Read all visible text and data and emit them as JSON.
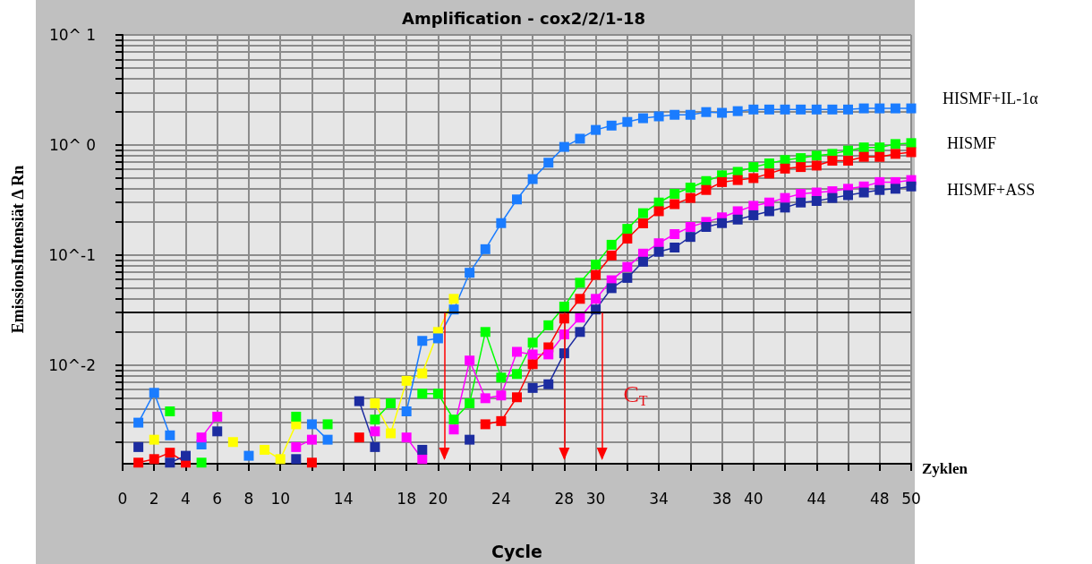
{
  "chart_data": {
    "type": "line",
    "title": "Amplification - cox2/2/1-18",
    "xlabel": "Cycle",
    "ylabel": "EmissionsIntensiät Δ Rn",
    "x": [
      1,
      2,
      3,
      4,
      5,
      6,
      7,
      8,
      9,
      10,
      11,
      12,
      13,
      14,
      15,
      16,
      17,
      18,
      19,
      20,
      21,
      22,
      23,
      24,
      25,
      26,
      27,
      28,
      29,
      30,
      31,
      32,
      33,
      34,
      35,
      36,
      37,
      38,
      39,
      40,
      41,
      42,
      43,
      44,
      45,
      46,
      47,
      48,
      49,
      50
    ],
    "series": [
      {
        "color": "#ffff00",
        "values": [
          null,
          0.0021,
          null,
          null,
          null,
          null,
          0.002,
          null,
          0.0017,
          0.0014,
          0.0029,
          null,
          null,
          null,
          null,
          0.0045,
          0.0024,
          0.0072,
          0.0084,
          0.02,
          0.04,
          null,
          null,
          null,
          null,
          null,
          null,
          null,
          null,
          null,
          null,
          null,
          null,
          null,
          null,
          null,
          null,
          null,
          null,
          null,
          null,
          null,
          null,
          null,
          null,
          null,
          null,
          null,
          null,
          null
        ]
      },
      {
        "color": "#1a7cff",
        "values": [
          0.003,
          0.0056,
          0.0023,
          null,
          0.0019,
          null,
          null,
          0.0015,
          null,
          null,
          null,
          0.0029,
          0.0021,
          null,
          null,
          null,
          null,
          0.0038,
          0.0166,
          0.0175,
          0.032,
          0.069,
          0.113,
          0.195,
          0.32,
          0.49,
          0.69,
          0.96,
          1.14,
          1.37,
          1.5,
          1.62,
          1.75,
          1.82,
          1.88,
          1.88,
          1.99,
          1.96,
          2.03,
          2.1,
          2.1,
          2.1,
          2.1,
          2.1,
          2.1,
          2.1,
          2.15,
          2.15,
          2.15,
          2.15
        ]
      },
      {
        "color": "#00ff00",
        "values": [
          null,
          null,
          0.0038,
          null,
          0.0013,
          null,
          null,
          null,
          null,
          null,
          0.0034,
          null,
          0.0029,
          null,
          null,
          0.0032,
          0.0045,
          null,
          0.0055,
          0.0055,
          0.0032,
          0.0045,
          0.02,
          0.0077,
          0.0083,
          0.016,
          0.023,
          0.034,
          0.056,
          0.082,
          0.124,
          0.173,
          0.24,
          0.3,
          0.36,
          0.41,
          0.47,
          0.53,
          0.57,
          0.63,
          0.68,
          0.73,
          0.76,
          0.8,
          0.83,
          0.89,
          0.95,
          0.95,
          1.02,
          1.04
        ]
      },
      {
        "color": "#ff0000",
        "values": [
          0.0013,
          0.0014,
          0.0016,
          0.0013,
          null,
          null,
          null,
          null,
          null,
          null,
          null,
          0.0013,
          null,
          null,
          0.0022,
          null,
          null,
          null,
          null,
          null,
          null,
          null,
          0.0029,
          0.0031,
          0.0051,
          0.0102,
          0.0145,
          0.0265,
          0.04,
          0.066,
          0.099,
          0.141,
          0.194,
          0.25,
          0.29,
          0.33,
          0.39,
          0.46,
          0.48,
          0.5,
          0.55,
          0.61,
          0.63,
          0.65,
          0.72,
          0.72,
          0.78,
          0.78,
          0.83,
          0.86
        ]
      },
      {
        "color": "#ff00ff",
        "values": [
          null,
          null,
          null,
          null,
          0.0022,
          0.0034,
          null,
          null,
          null,
          null,
          0.0018,
          0.0021,
          null,
          null,
          null,
          0.0025,
          null,
          0.0022,
          0.0014,
          null,
          0.0026,
          0.011,
          0.005,
          0.0053,
          0.0132,
          0.0125,
          0.0125,
          0.019,
          0.027,
          0.04,
          0.059,
          0.078,
          0.103,
          0.128,
          0.155,
          0.18,
          0.2,
          0.22,
          0.25,
          0.28,
          0.3,
          0.33,
          0.36,
          0.37,
          0.38,
          0.4,
          0.42,
          0.46,
          0.46,
          0.48
        ]
      },
      {
        "color": "#1c2ca0",
        "values": [
          0.0018,
          null,
          0.0013,
          0.0015,
          null,
          0.0025,
          null,
          null,
          null,
          null,
          0.0014,
          null,
          null,
          null,
          0.0047,
          0.0018,
          null,
          null,
          0.0017,
          null,
          null,
          0.0021,
          null,
          null,
          null,
          0.0062,
          0.0067,
          0.0128,
          0.02,
          0.032,
          0.05,
          0.062,
          0.087,
          0.107,
          0.117,
          0.146,
          0.18,
          0.195,
          0.21,
          0.23,
          0.25,
          0.27,
          0.3,
          0.31,
          0.33,
          0.35,
          0.37,
          0.39,
          0.4,
          0.42
        ]
      }
    ],
    "xlim": [
      0,
      50
    ],
    "xticks": [
      0,
      2,
      4,
      6,
      8,
      10,
      {
        "value": 12,
        "label": null
      },
      14,
      {
        "value": 16,
        "label": null
      },
      18,
      20,
      {
        "value": 22,
        "label": null
      },
      24,
      {
        "value": 26,
        "label": null
      },
      28,
      30,
      {
        "value": 32,
        "label": null
      },
      34,
      {
        "value": 36,
        "label": null
      },
      38,
      40,
      {
        "value": 42,
        "label": null
      },
      44,
      {
        "value": 46,
        "label": null
      },
      48,
      50
    ],
    "ylim": [
      0.00127,
      10
    ],
    "yticks": [
      {
        "value": 0.002,
        "label": null
      },
      {
        "value": 0.003,
        "label": null
      },
      {
        "value": 0.004,
        "label": null
      },
      {
        "value": 0.005,
        "label": null
      },
      {
        "value": 0.006,
        "label": null
      },
      {
        "value": 0.007,
        "label": null
      },
      {
        "value": 0.008,
        "label": null
      },
      {
        "value": 0.009,
        "label": null
      },
      {
        "value": 0.01,
        "label": "10^-2"
      },
      {
        "value": 0.02,
        "label": null
      },
      {
        "value": 0.03,
        "label": null
      },
      {
        "value": 0.04,
        "label": null
      },
      {
        "value": 0.05,
        "label": null
      },
      {
        "value": 0.06,
        "label": null
      },
      {
        "value": 0.07,
        "label": null
      },
      {
        "value": 0.08,
        "label": null
      },
      {
        "value": 0.09,
        "label": null
      },
      {
        "value": 0.1,
        "label": "10^-1"
      },
      {
        "value": 0.2,
        "label": null
      },
      {
        "value": 0.3,
        "label": null
      },
      {
        "value": 0.4,
        "label": null
      },
      {
        "value": 0.5,
        "label": null
      },
      {
        "value": 0.6,
        "label": null
      },
      {
        "value": 0.7,
        "label": null
      },
      {
        "value": 0.8,
        "label": null
      },
      {
        "value": 0.9,
        "label": null
      },
      {
        "value": 1,
        "label": "10^ 0"
      },
      {
        "value": 2,
        "label": null
      },
      {
        "value": 3,
        "label": null
      },
      {
        "value": 4,
        "label": null
      },
      {
        "value": 5,
        "label": null
      },
      {
        "value": 6,
        "label": null
      },
      {
        "value": 7,
        "label": null
      },
      {
        "value": 8,
        "label": null
      },
      {
        "value": 9,
        "label": null
      },
      {
        "value": 10,
        "label": "10^ 1"
      }
    ],
    "log": "y",
    "grid": true,
    "marker": "square",
    "line_style": "solid",
    "ref_lines": [
      {
        "axis": "y",
        "value": 0.03,
        "label": null,
        "color": "#000000"
      },
      {
        "axis": "x",
        "value": 20.4,
        "label": null,
        "color": "#ff0000"
      },
      {
        "axis": "x",
        "value": 28,
        "label": null,
        "color": "#ff0000"
      },
      {
        "axis": "x",
        "value": 30.4,
        "label": null,
        "color": "#ff0000"
      }
    ],
    "annotations": [
      "HISMF+IL-1α",
      "HISMF",
      "HISMF+ASS",
      "C$_{T}$",
      "Zyklen"
    ]
  }
}
